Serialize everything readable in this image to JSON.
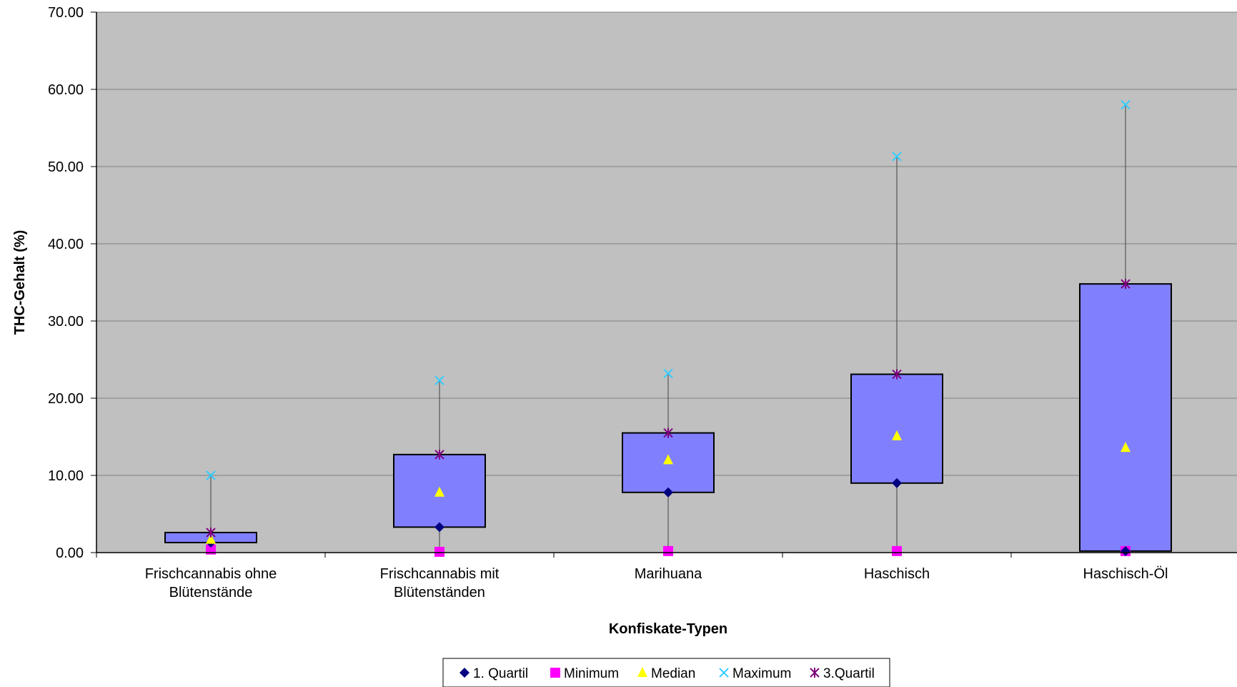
{
  "chart_data": {
    "type": "boxplot",
    "title": "",
    "xlabel": "Konfiskate-Typen",
    "ylabel": "THC-Gehalt (%)",
    "ylim": [
      0,
      70
    ],
    "y_ticks": [
      "0.00",
      "10.00",
      "20.00",
      "30.00",
      "40.00",
      "50.00",
      "60.00",
      "70.00"
    ],
    "y_tick_values": [
      0,
      10,
      20,
      30,
      40,
      50,
      60,
      70
    ],
    "grid": true,
    "legend_position": "bottom",
    "categories": [
      [
        "Frischcannabis ohne",
        "Blütenstände"
      ],
      [
        "Frischcannabis mit",
        "Blütenständen"
      ],
      [
        "Marihuana"
      ],
      [
        "Haschisch"
      ],
      [
        "Haschisch-Öl"
      ]
    ],
    "series": [
      {
        "name": "1. Quartil",
        "marker": "diamond",
        "color": "#000080",
        "values": [
          1.3,
          3.3,
          7.8,
          9.0,
          0.2
        ]
      },
      {
        "name": "Minimum",
        "marker": "square",
        "color": "#ff00ff",
        "values": [
          0.4,
          0.1,
          0.2,
          0.2,
          0.2
        ]
      },
      {
        "name": "Median",
        "marker": "triangle",
        "color": "#ffff00",
        "values": [
          1.7,
          7.8,
          12.0,
          15.1,
          13.6
        ]
      },
      {
        "name": "Maximum",
        "marker": "x",
        "color": "#33ccff",
        "values": [
          10.0,
          22.3,
          23.2,
          51.3,
          58.0
        ]
      },
      {
        "name": "3.Quartil",
        "marker": "star",
        "color": "#800080",
        "values": [
          2.6,
          12.7,
          15.5,
          23.1,
          34.8
        ]
      }
    ],
    "colors": {
      "plot_background": "#c0c0c0",
      "box_fill": "#8080ff",
      "gridline": "#808080"
    }
  }
}
